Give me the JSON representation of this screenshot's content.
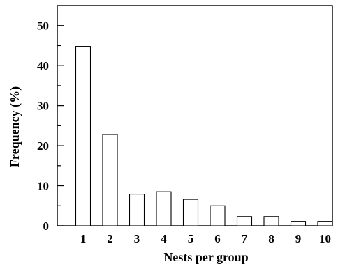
{
  "chart_data": {
    "type": "bar",
    "title": "",
    "xlabel": "Nests per group",
    "ylabel": "Frequency (%)",
    "categories": [
      "1",
      "2",
      "3",
      "4",
      "5",
      "6",
      "7",
      "8",
      "9",
      "10"
    ],
    "values": [
      44.8,
      22.8,
      7.9,
      8.5,
      6.6,
      5.0,
      2.3,
      2.3,
      1.1,
      1.1
    ],
    "ylim": [
      0,
      55
    ],
    "yticks_major": [
      0,
      10,
      20,
      30,
      40,
      50
    ],
    "yticks_minor": [
      5,
      15,
      25,
      35,
      45
    ],
    "grid": false,
    "legend": "none"
  }
}
